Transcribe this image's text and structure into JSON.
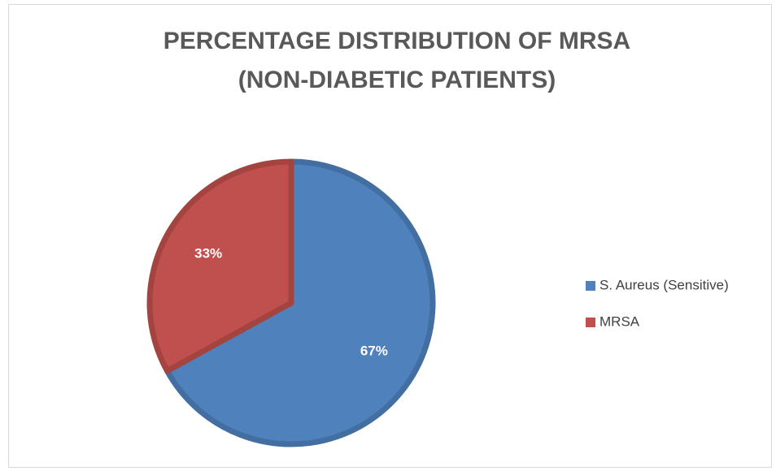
{
  "chart_data": {
    "type": "pie",
    "title": [
      "PERCENTAGE DISTRIBUTION OF  MRSA",
      "(NON-DIABETIC PATIENTS)"
    ],
    "categories": [
      "S. Aureus (Sensitive)",
      "MRSA"
    ],
    "values": [
      67,
      33
    ],
    "value_labels": [
      "67%",
      "33%"
    ],
    "colors": [
      "#4f81bd",
      "#c0504d"
    ],
    "legend": "right"
  }
}
